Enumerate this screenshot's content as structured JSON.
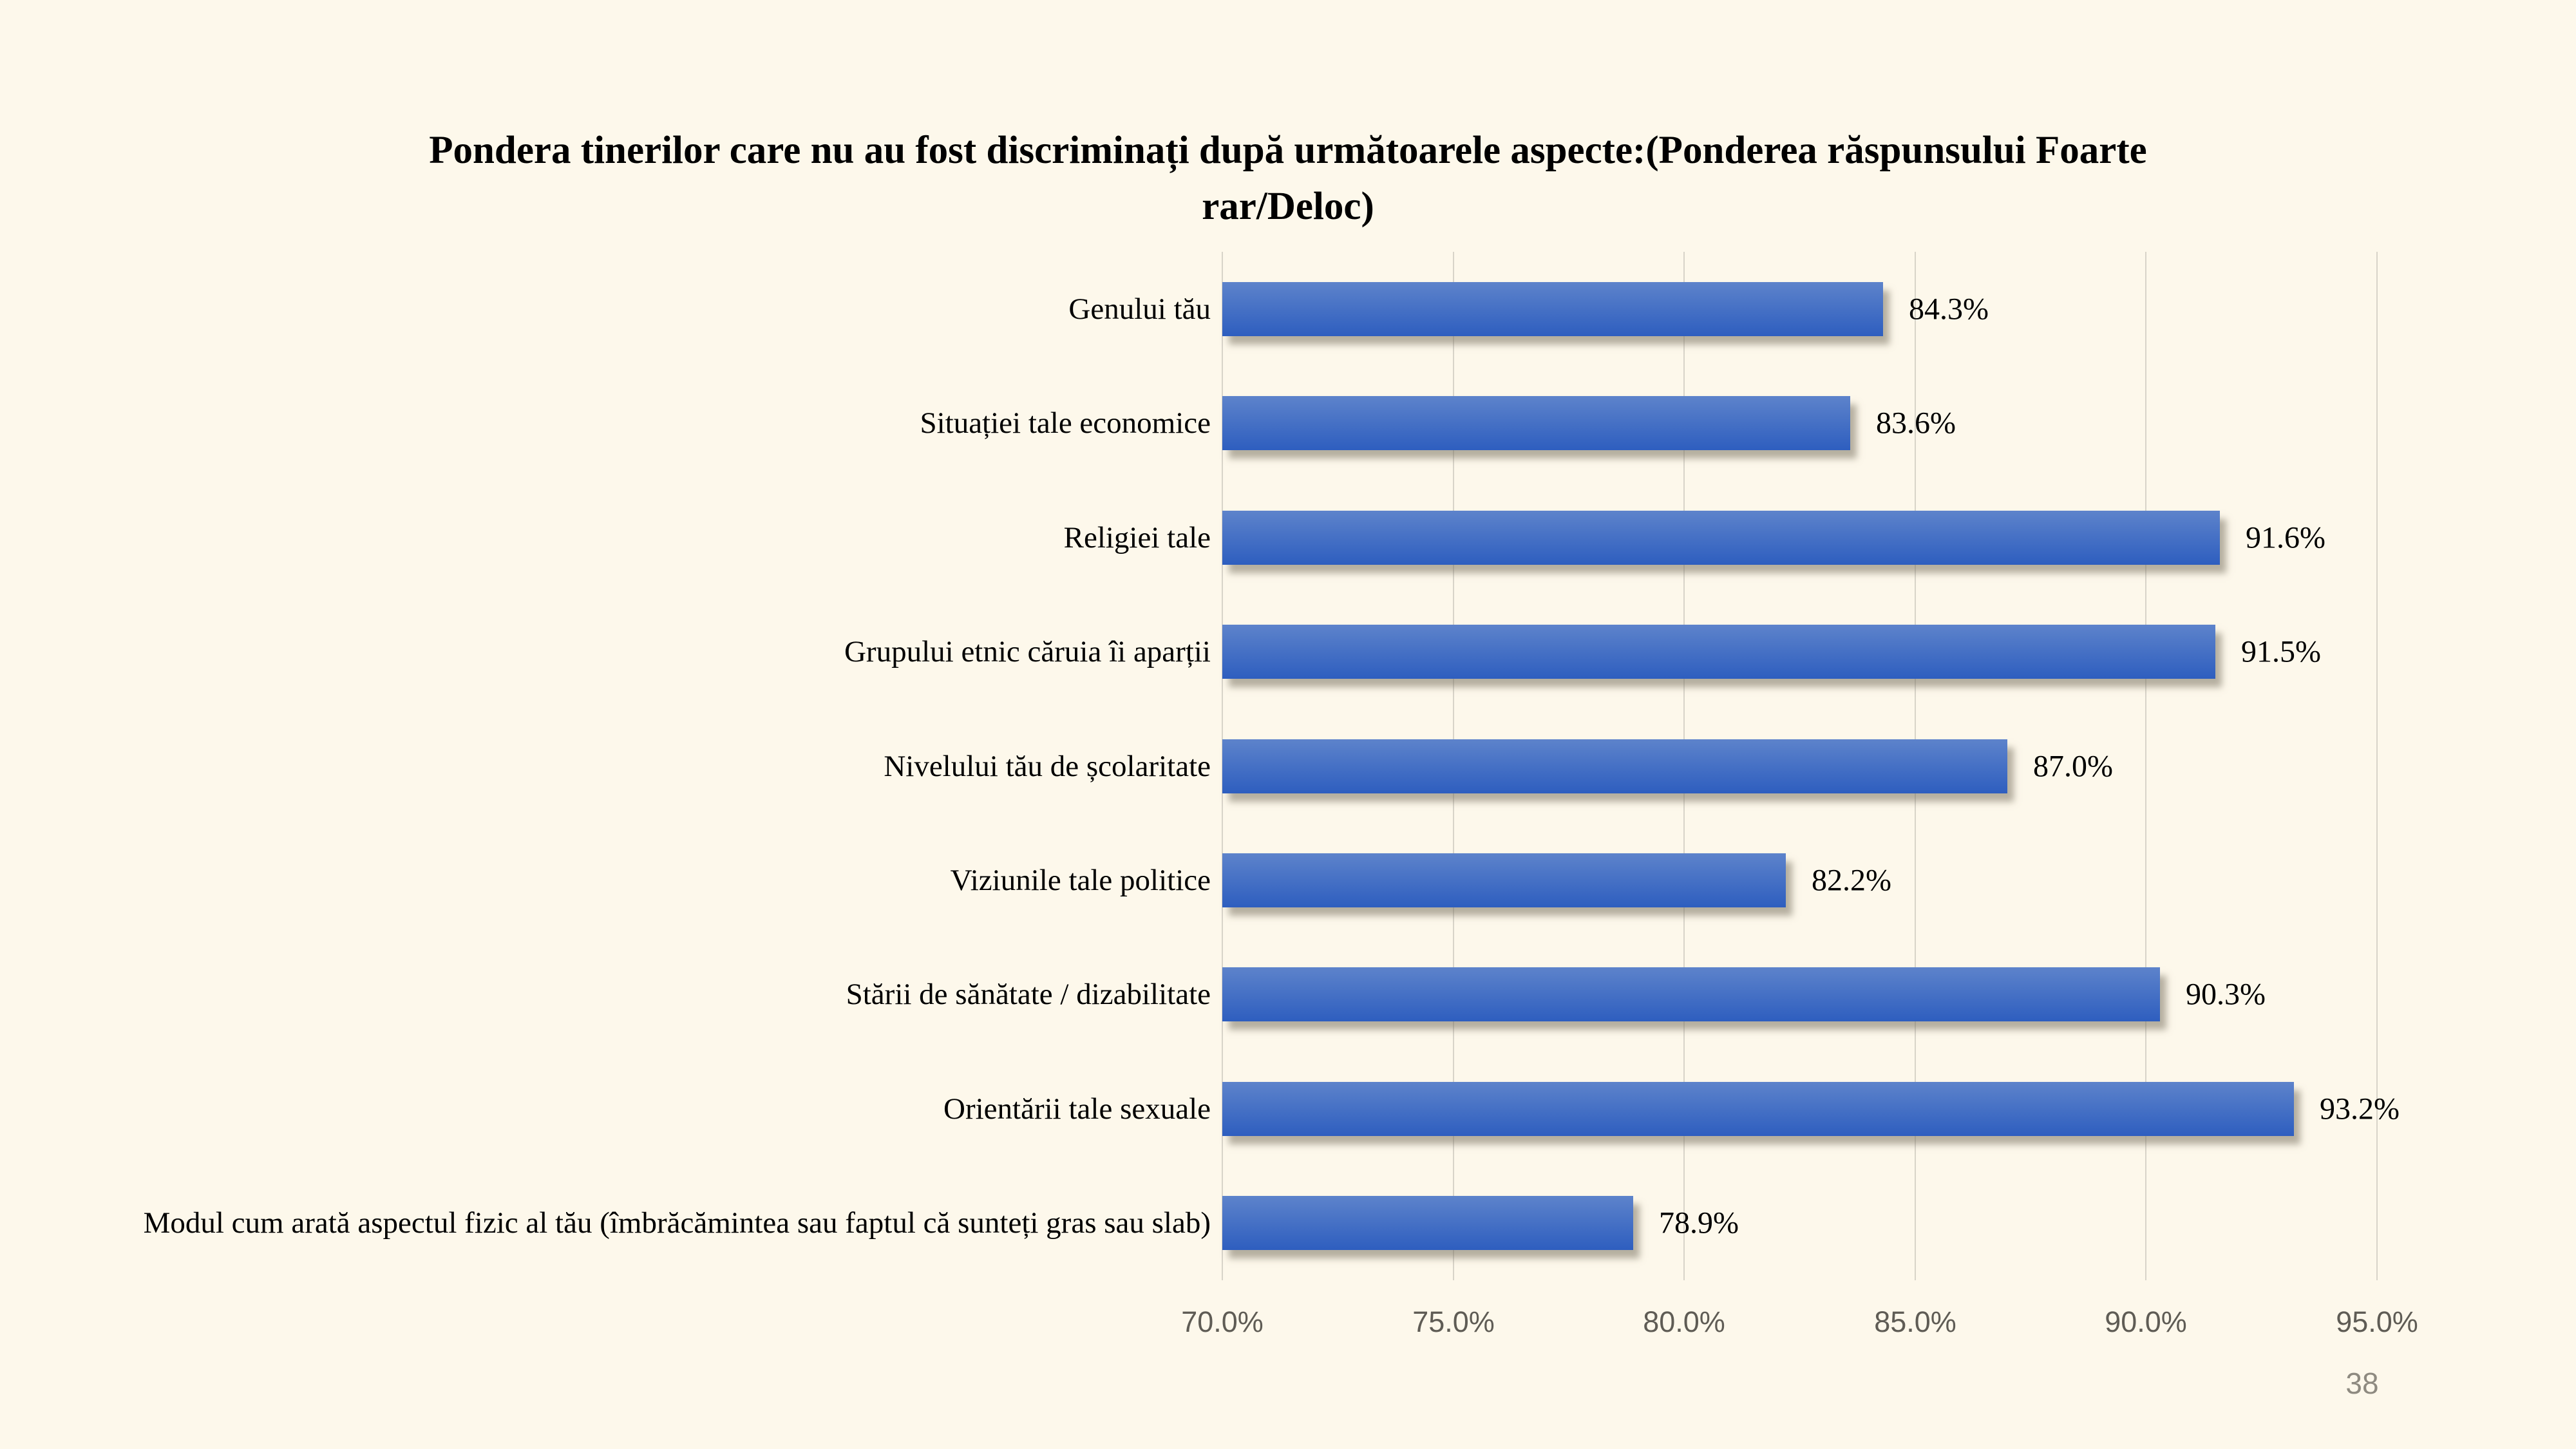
{
  "page": {
    "number": "38"
  },
  "colors": {
    "background": "#FDF8EB",
    "bar_top": "#5D83CB",
    "bar_bottom": "#2E5EBF",
    "gridline": "#D8D4C9",
    "axis_label": "#5F5C55",
    "page_number": "#8E8A80",
    "text": "#000000"
  },
  "chart_data": {
    "type": "bar",
    "orientation": "horizontal",
    "title": "Pondera tinerilor care nu au fost discriminați după următoarele aspecte:(Ponderea răspunsului Foarte rar/Deloc)",
    "categories": [
      "Genului tău",
      "Situației tale economice",
      "Religiei tale",
      "Grupului etnic căruia îi aparții",
      "Nivelului tău de școlaritate",
      "Viziunile tale politice",
      "Stării de sănătate / dizabilitate",
      "Orientării tale sexuale",
      "Modul cum arată aspectul fizic al tău (îmbrăcămintea sau faptul că sunteți gras sau slab)"
    ],
    "values": [
      84.3,
      83.6,
      91.6,
      91.5,
      87.0,
      82.2,
      90.3,
      93.2,
      78.9
    ],
    "value_labels": [
      "84.3%",
      "83.6%",
      "91.6%",
      "91.5%",
      "87.0%",
      "82.2%",
      "90.3%",
      "93.2%",
      "78.9%"
    ],
    "xlim": [
      70,
      95
    ],
    "x_tick_values": [
      70,
      75,
      80,
      85,
      90,
      95
    ],
    "x_tick_labels": [
      "70.0%",
      "75.0%",
      "80.0%",
      "85.0%",
      "90.0%",
      "95.0%"
    ],
    "grid": true,
    "legend": "none"
  }
}
